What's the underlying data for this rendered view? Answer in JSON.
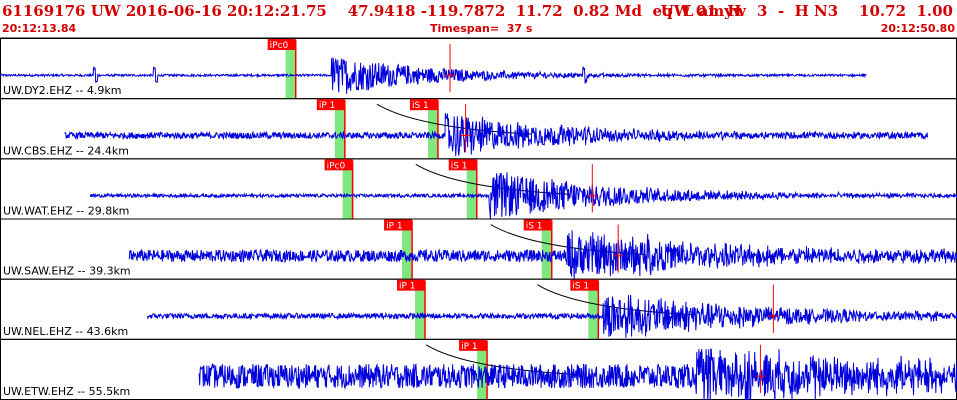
{
  "header": {
    "event_info": "61169176 UW 2016-06-16 20:12:21.75    47.9418 -119.7872  11.72  0.82 Md  eq  L amyw",
    "channel_info": "UW 01  H   3  -  H N3    10.72  1.00"
  },
  "timebar": {
    "start": "20:12:13.84",
    "timespan": "Timespan=  37 s",
    "end": "20:12:50.80"
  },
  "colors": {
    "text": "#d40000",
    "trace": "#0000dd",
    "pick_box": "#ff0000",
    "pick_shade": "#7ee87e",
    "theory_curve": "#000000",
    "panel_border": "#000000"
  },
  "panels": [
    {
      "label": "UW.DY2.EHZ -- 4.9km",
      "picks": [
        {
          "label": "iPc0",
          "t": 11.2
        }
      ],
      "s_markers": [
        17.4
      ],
      "trace": {
        "start": 0.0,
        "end": 33.5,
        "noise": 0.04,
        "onset": 12.8,
        "peak": 0.75,
        "decay": 4.0,
        "spikes": [
          3.7,
          6.0,
          22.6
        ]
      }
    },
    {
      "label": "UW.CBS.EHZ -- 24.4km",
      "picks": [
        {
          "label": "iP 1",
          "t": 13.1
        },
        {
          "label": "iS 1",
          "t": 16.7
        }
      ],
      "s_markers": [
        18.0
      ],
      "trace": {
        "start": 2.5,
        "end": 35.9,
        "noise": 0.12,
        "onset": 17.2,
        "peak": 0.85,
        "decay": 4.5,
        "spikes": []
      }
    },
    {
      "label": "UW.WAT.EHZ -- 29.8km",
      "picks": [
        {
          "label": "iPc0",
          "t": 13.4
        },
        {
          "label": "iS 1",
          "t": 18.2
        }
      ],
      "s_markers": [
        22.9
      ],
      "trace": {
        "start": 3.5,
        "end": 38.0,
        "noise": 0.06,
        "onset": 18.9,
        "peak": 0.95,
        "decay": 5.0,
        "spikes": []
      }
    },
    {
      "label": "UW.SAW.EHZ -- 39.3km",
      "picks": [
        {
          "label": "iP 1",
          "t": 15.7
        },
        {
          "label": "iS 1",
          "t": 21.1
        }
      ],
      "s_markers": [
        23.9
      ],
      "trace": {
        "start": 5.0,
        "end": 38.4,
        "noise": 0.22,
        "onset": 21.9,
        "peak": 0.9,
        "decay": 6.0,
        "spikes": [
          25.1
        ]
      }
    },
    {
      "label": "UW.NEL.EHZ -- 43.6km",
      "picks": [
        {
          "label": "iP 1",
          "t": 16.2
        },
        {
          "label": "iS 1",
          "t": 22.9
        }
      ],
      "s_markers": [
        29.9
      ],
      "trace": {
        "start": 5.7,
        "end": 39.3,
        "noise": 0.1,
        "onset": 23.3,
        "peak": 0.9,
        "decay": 6.0,
        "spikes": []
      }
    },
    {
      "label": "UW.ETW.EHZ -- 55.5km",
      "picks": [
        {
          "label": "iP 1",
          "t": 18.6
        }
      ],
      "s_markers": [
        29.4
      ],
      "trace": {
        "start": 7.7,
        "end": 40.4,
        "noise": 0.45,
        "onset": 26.9,
        "peak": 0.95,
        "decay": 8.0,
        "spikes": []
      }
    }
  ]
}
